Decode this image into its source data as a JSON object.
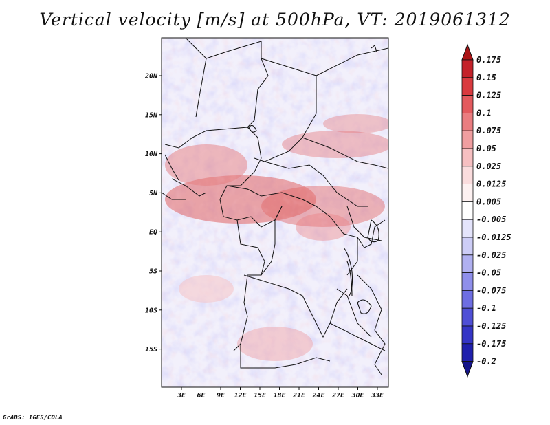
{
  "title": "Vertical velocity [m/s] at 500hPa, VT: 2019061312",
  "credit": "GrADS: IGES/COLA",
  "map": {
    "variable": "Vertical velocity",
    "units": "m/s",
    "level": "500hPa",
    "valid_time": "2019061312",
    "lat_labels": [
      "20N",
      "15N",
      "10N",
      "5N",
      "EQ",
      "5S",
      "10S",
      "15S"
    ],
    "lon_labels": [
      "3E",
      "6E",
      "9E",
      "12E",
      "15E",
      "18E",
      "21E",
      "24E",
      "27E",
      "30E",
      "33E"
    ]
  },
  "colorbar": {
    "labels": [
      "0.175",
      "0.15",
      "0.125",
      "0.1",
      "0.075",
      "0.05",
      "0.025",
      "0.0125",
      "0.005",
      "-0.005",
      "-0.0125",
      "-0.025",
      "-0.05",
      "-0.075",
      "-0.1",
      "-0.125",
      "-0.175",
      "-0.2"
    ],
    "colors": [
      "#ab1416",
      "#c4222a",
      "#d93a3f",
      "#e35a5e",
      "#ea7d80",
      "#f09ea0",
      "#f6bfc1",
      "#fadcdd",
      "#fdf1f1",
      "#ffffff",
      "#e4e4fb",
      "#cdcdf6",
      "#b0b0f0",
      "#8f8feb",
      "#6e6ee2",
      "#4f4fd6",
      "#3535c6",
      "#2020ad",
      "#14148a"
    ]
  }
}
